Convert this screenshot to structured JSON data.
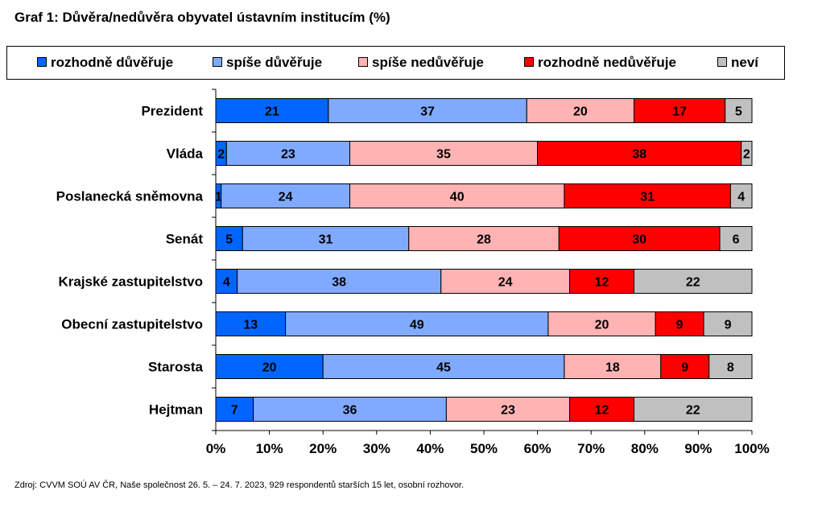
{
  "title": "Graf 1: Důvěra/nedůvěra obyvatel ústavním institucím (%)",
  "source": "Zdroj: CVVM SOÚ AV ČR, Naše společnost 26. 5. – 24. 7. 2023, 929 respondentů starších 15 let, osobní rozhovor.",
  "legend": [
    {
      "label": "rozhodně důvěřuje",
      "color": "#0066ff"
    },
    {
      "label": "spíše důvěřuje",
      "color": "#80aaff"
    },
    {
      "label": "spíše nedůvěřuje",
      "color": "#ffb3b3"
    },
    {
      "label": "rozhodně nedůvěřuje",
      "color": "#ff0000"
    },
    {
      "label": "neví",
      "color": "#c0c0c0"
    }
  ],
  "chart_data": {
    "type": "bar",
    "orientation": "horizontal",
    "stacked": true,
    "categories": [
      "Prezident",
      "Vláda",
      "Poslanecká sněmovna",
      "Senát",
      "Krajské zastupitelstvo",
      "Obecní zastupitelstvo",
      "Starosta",
      "Hejtman"
    ],
    "series": [
      {
        "name": "rozhodně důvěřuje",
        "color": "#0066ff",
        "values": [
          21,
          2,
          1,
          5,
          4,
          13,
          20,
          7
        ]
      },
      {
        "name": "spíše důvěřuje",
        "color": "#80aaff",
        "values": [
          37,
          23,
          24,
          31,
          38,
          49,
          45,
          36
        ]
      },
      {
        "name": "spíše nedůvěřuje",
        "color": "#ffb3b3",
        "values": [
          20,
          35,
          40,
          28,
          24,
          20,
          18,
          23
        ]
      },
      {
        "name": "rozhodně nedůvěřuje",
        "color": "#ff0000",
        "values": [
          17,
          38,
          31,
          30,
          12,
          9,
          9,
          12
        ]
      },
      {
        "name": "neví",
        "color": "#c0c0c0",
        "values": [
          5,
          2,
          4,
          6,
          22,
          9,
          8,
          22
        ]
      }
    ],
    "xlim": [
      0,
      100
    ],
    "xticks": [
      "0%",
      "10%",
      "20%",
      "30%",
      "40%",
      "50%",
      "60%",
      "70%",
      "80%",
      "90%",
      "100%"
    ],
    "legend_position": "top",
    "grid": false
  }
}
